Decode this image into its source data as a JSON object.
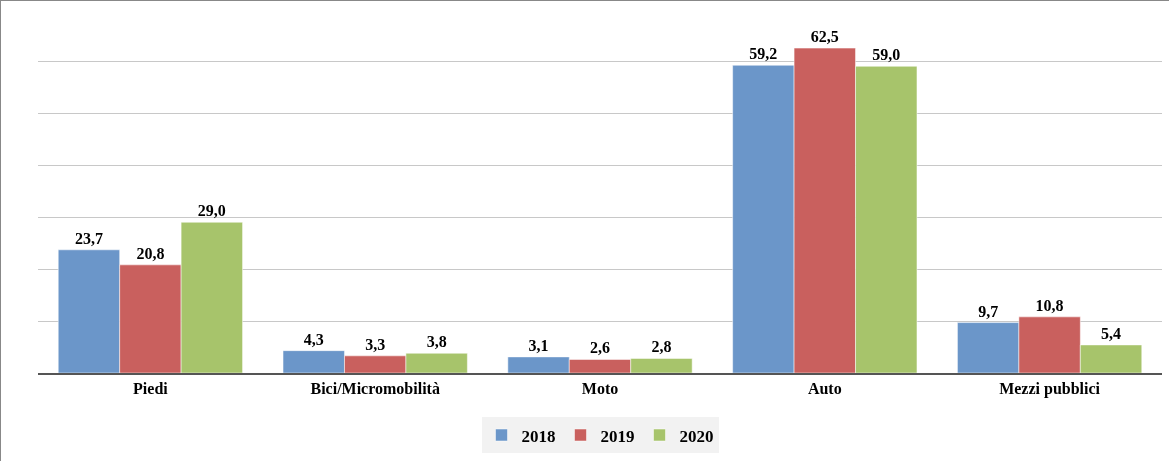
{
  "chart_data": {
    "type": "bar",
    "categories": [
      "Piedi",
      "Bici/Micromobilità",
      "Moto",
      "Auto",
      "Mezzi pubblici"
    ],
    "series": [
      {
        "name": "2018",
        "color": "#6b96c9",
        "values": [
          23.7,
          4.3,
          3.1,
          59.2,
          9.7
        ],
        "value_labels": [
          "23,7",
          "4,3",
          "3,1",
          "59,2",
          "9,7"
        ]
      },
      {
        "name": "2019",
        "color": "#c9605e",
        "values": [
          20.8,
          3.3,
          2.6,
          62.5,
          10.8
        ],
        "value_labels": [
          "20,8",
          "3,3",
          "2,6",
          "62,5",
          "10,8"
        ]
      },
      {
        "name": "2020",
        "color": "#a7c46b",
        "values": [
          29.0,
          3.8,
          2.8,
          59.0,
          5.4
        ],
        "value_labels": [
          "29,0",
          "3,8",
          "2,8",
          "59,0",
          "5,4"
        ]
      }
    ],
    "grid": "y",
    "legend": "bottom",
    "tick_labels": "x"
  }
}
